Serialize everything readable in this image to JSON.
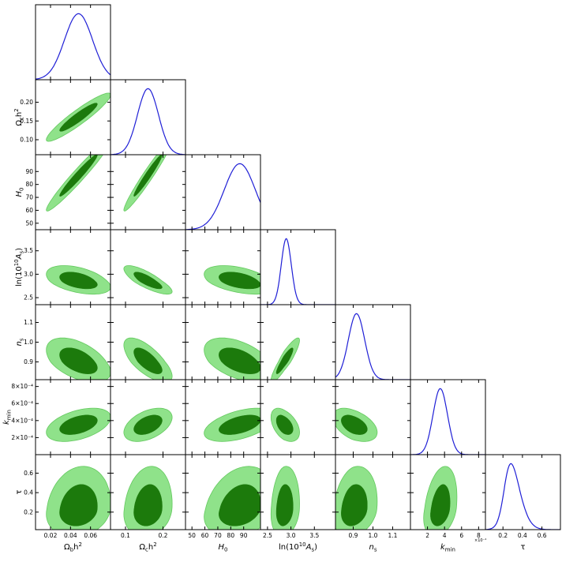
{
  "chart_data": {
    "type": "triangle",
    "colors": {
      "pdf_line": "#1f1fd6",
      "contour_outer": "#8fe28a",
      "contour_inner": "#1c7a0c"
    },
    "params": [
      {
        "id": "ombh2",
        "label": "Ωbh²",
        "range": [
          0.005,
          0.08
        ],
        "ticks": [
          0.02,
          0.04,
          0.06
        ],
        "tick_labels": [
          "0.02",
          "0.04",
          "0.06"
        ],
        "mean": 0.048,
        "sigma": 0.014,
        "skew": 0
      },
      {
        "id": "omch2",
        "label": "Ωch²",
        "range": [
          0.06,
          0.26
        ],
        "ticks": [
          0.1,
          0.2
        ],
        "tick_labels": [
          "0.1",
          "0.2"
        ],
        "left_ticks": [
          0.1,
          0.15,
          0.2
        ],
        "left_tick_labels": [
          "0.10",
          "0.15",
          "0.20"
        ],
        "mean": 0.16,
        "sigma": 0.028,
        "skew": 0
      },
      {
        "id": "H0",
        "label": "H0",
        "range": [
          45,
          103
        ],
        "ticks": [
          50,
          60,
          70,
          80,
          90
        ],
        "tick_labels": [
          "50",
          "60",
          "70",
          "80",
          "90"
        ],
        "mean": 87,
        "sigma": 12,
        "skew": 0
      },
      {
        "id": "logA",
        "label": "ln(10¹⁰As)",
        "range": [
          2.35,
          3.95
        ],
        "ticks": [
          2.5,
          3.0,
          3.5
        ],
        "tick_labels": [
          "2.5",
          "3.0",
          "3.5"
        ],
        "mean": 2.85,
        "sigma": 0.12,
        "skew": 0.6
      },
      {
        "id": "ns",
        "label": "ns",
        "range": [
          0.81,
          1.19
        ],
        "ticks": [
          0.9,
          1.0,
          1.1
        ],
        "tick_labels": [
          "0.9",
          "1.0",
          "1.1"
        ],
        "mean": 0.9,
        "sigma": 0.045,
        "skew": 0.5
      },
      {
        "id": "kmin",
        "label": "kmin",
        "range": [
          0.0,
          0.00088
        ],
        "ticks": [
          0.0002,
          0.0004,
          0.0006,
          0.0008
        ],
        "tick_labels": [
          "2",
          "4",
          "6",
          "8"
        ],
        "left_tick_labels": [
          "2×10⁻⁴",
          "4×10⁻⁴",
          "6×10⁻⁴",
          "8×10⁻⁴"
        ],
        "exp_label": "×10⁻⁴",
        "mean": 0.00035,
        "sigma": 8.5e-05,
        "skew": 0
      },
      {
        "id": "tau",
        "label": "τ",
        "range": [
          0.02,
          0.79
        ],
        "ticks": [
          0.2,
          0.4,
          0.6
        ],
        "tick_labels": [
          "0.2",
          "0.4",
          "0.6"
        ],
        "left_ticks": [
          0.2,
          0.4,
          0.6
        ],
        "left_tick_labels": [
          "0.2",
          "0.4",
          "0.6"
        ],
        "mean": 0.22,
        "sigma": 0.12,
        "skew": 1.8
      }
    ],
    "correlations": {
      "1_0": 0.93,
      "2_0": 0.97,
      "2_1": 0.97,
      "3_0": -0.45,
      "3_1": -0.8,
      "3_2": -0.45,
      "4_0": -0.5,
      "4_1": -0.7,
      "4_2": -0.5,
      "4_3": 0.9,
      "5_0": 0.45,
      "5_1": 0.45,
      "5_2": 0.5,
      "5_3": -0.45,
      "5_4": -0.45,
      "6_0": 0.15,
      "6_1": 0.15,
      "6_2": 0.25,
      "6_3": 0.15,
      "6_4": 0.2,
      "6_5": 0.3
    }
  }
}
